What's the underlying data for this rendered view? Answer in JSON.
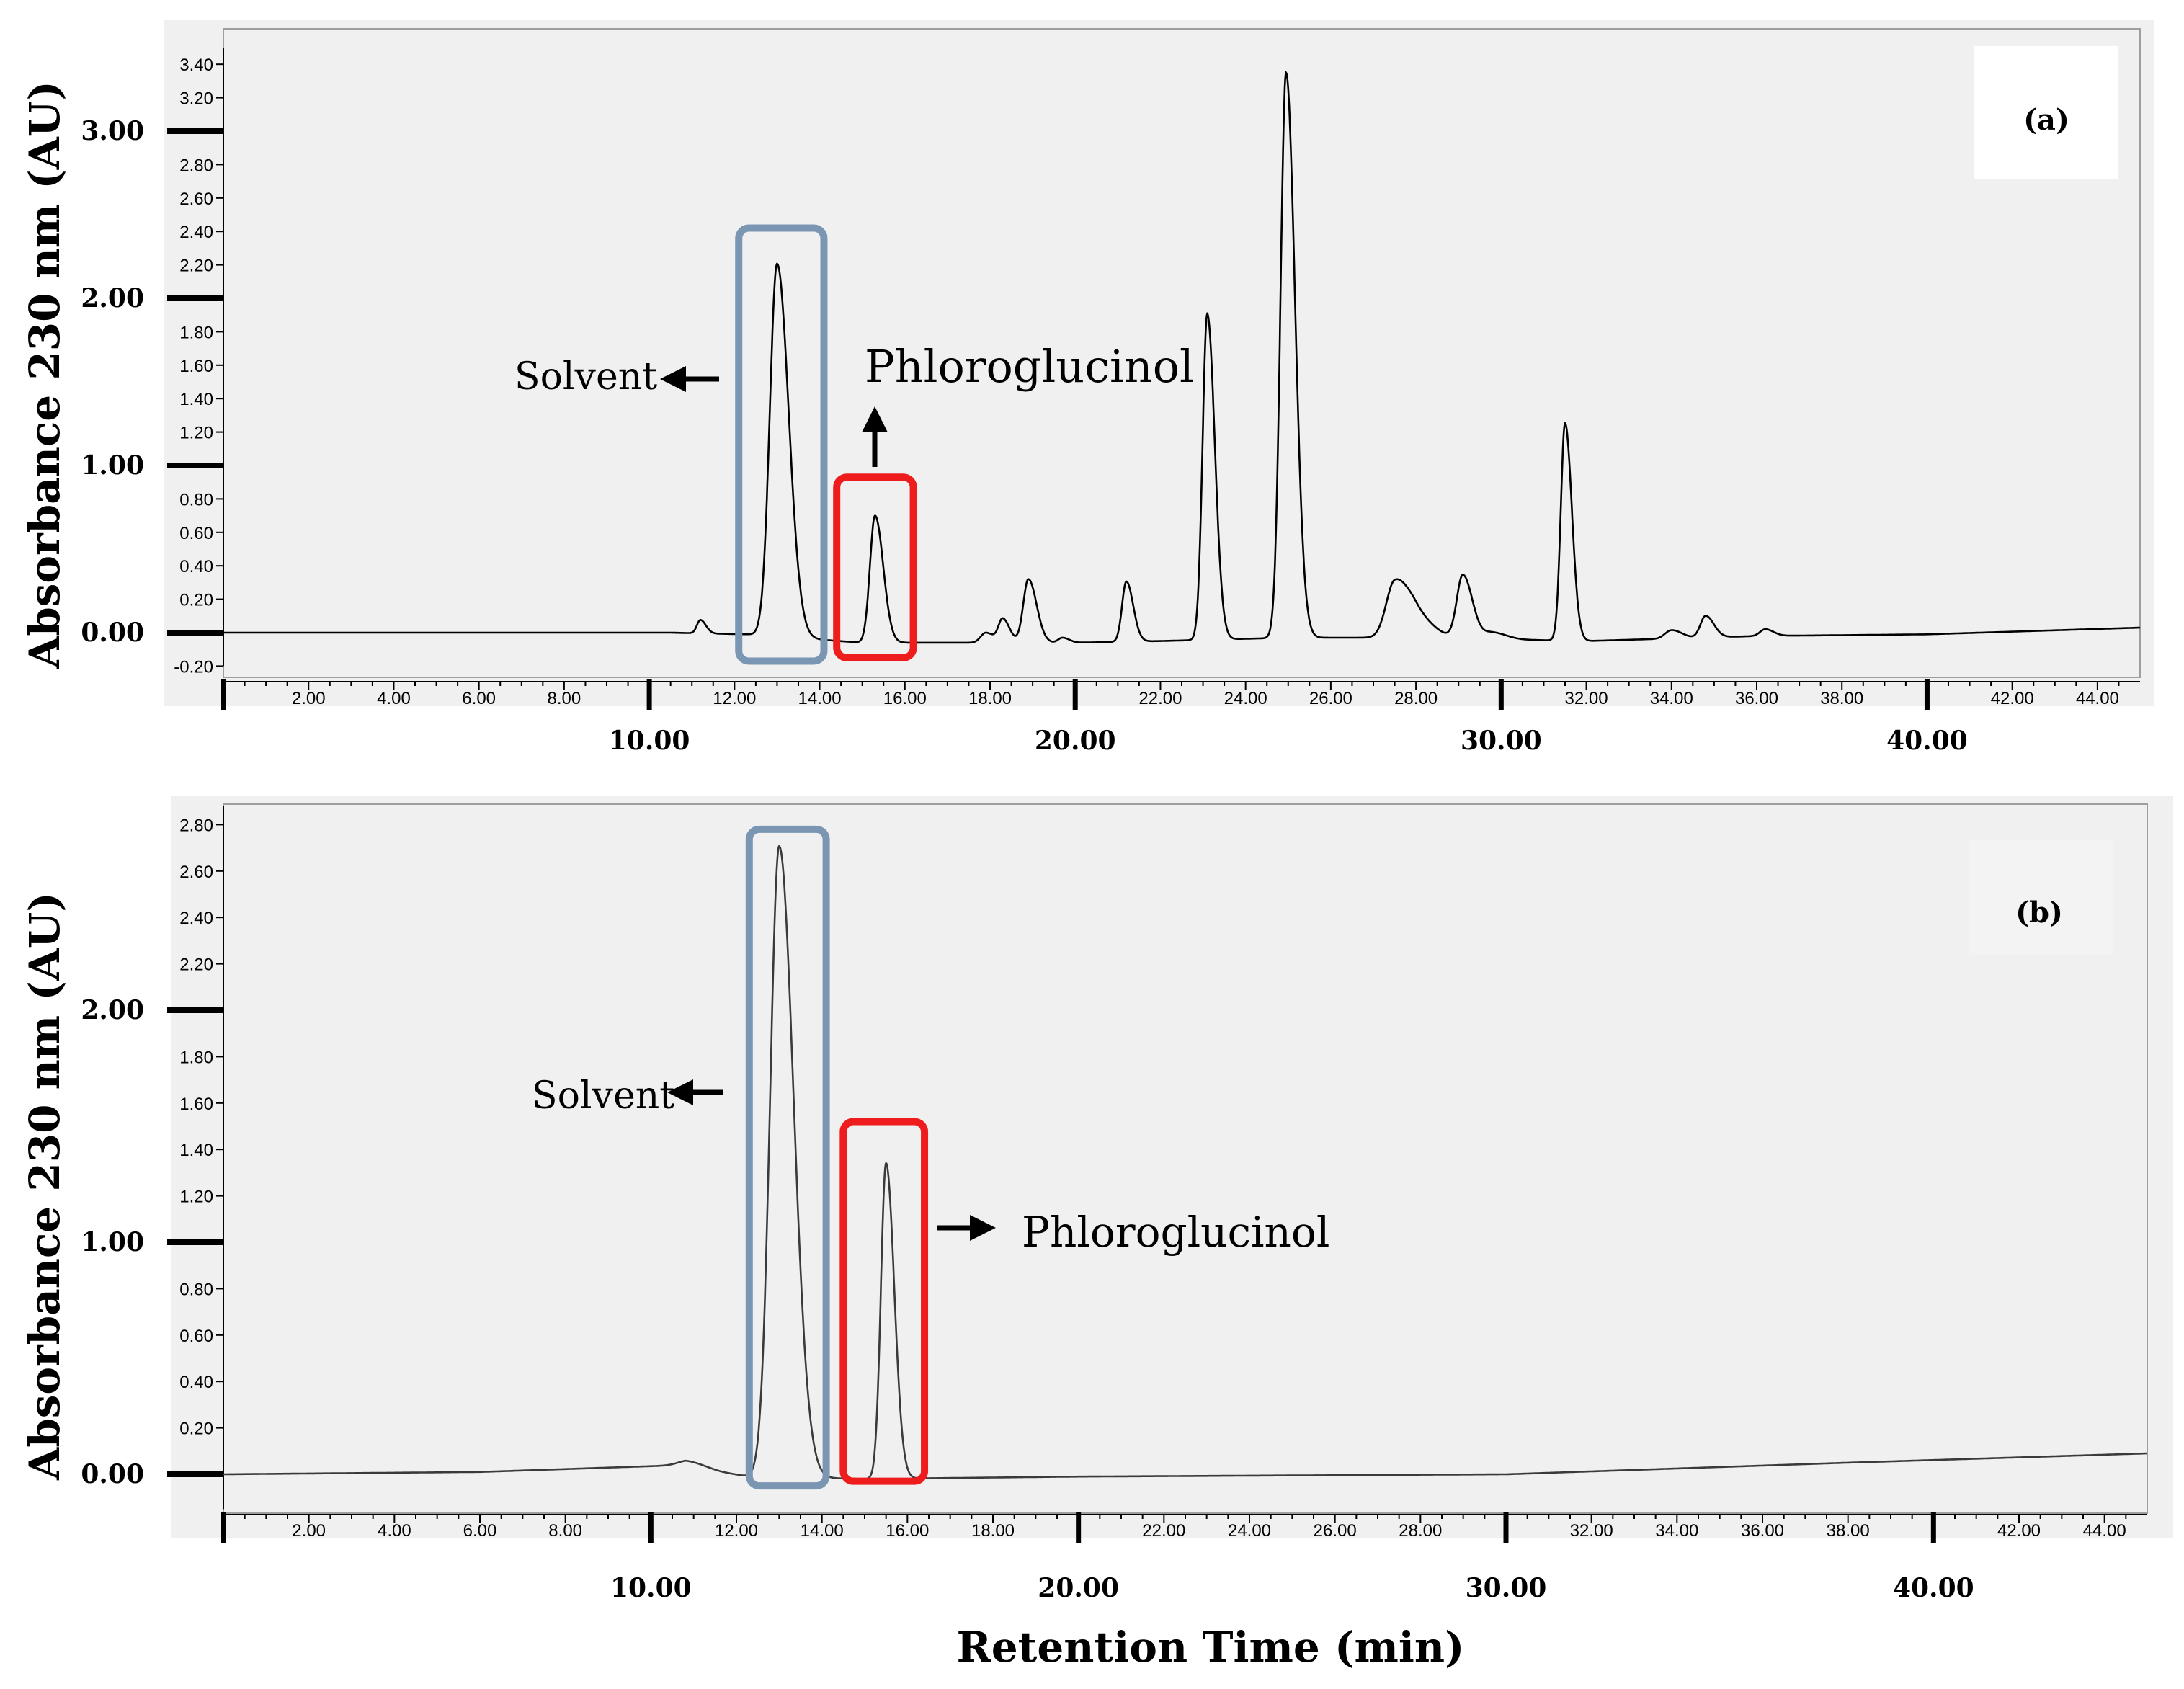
{
  "figure": {
    "xlabel": "Retention Time (min)",
    "ylabel": "Absorbance 230 nm (AU)"
  },
  "chart_data": [
    {
      "type": "line",
      "panel_label": "(a)",
      "xlim": [
        0,
        45
      ],
      "ylim": [
        -0.2,
        3.5
      ],
      "grid": false,
      "minor_x_ticks": [
        "2.00",
        "4.00",
        "6.00",
        "8.00",
        "12.00",
        "14.00",
        "16.00",
        "18.00",
        "22.00",
        "24.00",
        "26.00",
        "28.00",
        "32.00",
        "34.00",
        "36.00",
        "38.00",
        "42.00",
        "44.00"
      ],
      "major_x_ticks": [
        "10.00",
        "20.00",
        "30.00",
        "40.00"
      ],
      "minor_y_ticks": [
        "3.40",
        "3.20",
        "2.80",
        "2.60",
        "2.40",
        "2.20",
        "1.80",
        "1.60",
        "1.40",
        "1.20",
        "0.80",
        "0.60",
        "0.40",
        "0.20",
        "-0.20"
      ],
      "major_y_ticks": [
        "3.00",
        "2.00",
        "1.00",
        "0.00"
      ],
      "baseline": [
        [
          0,
          0.0
        ],
        [
          10.5,
          0.0
        ],
        [
          12.3,
          -0.01
        ],
        [
          15,
          -0.06
        ],
        [
          17,
          -0.06
        ],
        [
          20,
          -0.06
        ],
        [
          22,
          -0.05
        ],
        [
          25,
          -0.03
        ],
        [
          28,
          -0.03
        ],
        [
          32,
          -0.05
        ],
        [
          36,
          -0.02
        ],
        [
          40,
          -0.01
        ],
        [
          45,
          0.03
        ]
      ],
      "peaks": [
        {
          "rt": 11.2,
          "height": 0.08,
          "width": 0.08
        },
        {
          "rt": 13.0,
          "height": 2.23,
          "width": 0.17
        },
        {
          "rt": 15.3,
          "height": 0.76,
          "width": 0.12
        },
        {
          "rt": 17.9,
          "height": 0.06,
          "width": 0.12
        },
        {
          "rt": 18.3,
          "height": 0.14,
          "width": 0.1
        },
        {
          "rt": 18.9,
          "height": 0.38,
          "width": 0.12
        },
        {
          "rt": 19.7,
          "height": 0.03,
          "width": 0.1
        },
        {
          "rt": 21.2,
          "height": 0.36,
          "width": 0.1
        },
        {
          "rt": 23.1,
          "height": 1.95,
          "width": 0.11
        },
        {
          "rt": 24.95,
          "height": 3.38,
          "width": 0.13
        },
        {
          "rt": 27.5,
          "height": 0.33,
          "width": 0.2
        },
        {
          "rt": 28.0,
          "height": 0.12,
          "width": 0.25
        },
        {
          "rt": 29.1,
          "height": 0.38,
          "width": 0.14
        },
        {
          "rt": 29.8,
          "height": 0.04,
          "width": 0.2
        },
        {
          "rt": 31.5,
          "height": 1.3,
          "width": 0.1
        },
        {
          "rt": 34.0,
          "height": 0.05,
          "width": 0.15
        },
        {
          "rt": 34.8,
          "height": 0.13,
          "width": 0.12
        },
        {
          "rt": 36.2,
          "height": 0.04,
          "width": 0.12
        }
      ],
      "boxes": [
        {
          "name": "solvent-box",
          "x0": 12.1,
          "x1": 14.1,
          "y0": -0.17,
          "y1": 2.42,
          "color": "#7b96b2"
        },
        {
          "name": "phloroglucinol-box",
          "x0": 14.4,
          "x1": 16.2,
          "y0": -0.15,
          "y1": 0.93,
          "color": "#ee1c1c"
        }
      ],
      "annotations": {
        "solvent": "Solvent",
        "phloroglucinol": "Phloroglucinol"
      }
    },
    {
      "type": "line",
      "panel_label": "(b)",
      "xlim": [
        0,
        45
      ],
      "ylim": [
        -0.15,
        2.88
      ],
      "grid": false,
      "minor_x_ticks": [
        "2.00",
        "4.00",
        "6.00",
        "8.00",
        "12.00",
        "14.00",
        "16.00",
        "18.00",
        "22.00",
        "24.00",
        "26.00",
        "28.00",
        "32.00",
        "34.00",
        "36.00",
        "38.00",
        "42.00",
        "44.00"
      ],
      "major_x_ticks": [
        "10.00",
        "20.00",
        "30.00",
        "40.00"
      ],
      "minor_y_ticks": [
        "2.80",
        "2.60",
        "2.40",
        "2.20",
        "1.80",
        "1.60",
        "1.40",
        "1.20",
        "0.80",
        "0.60",
        "0.40",
        "0.20"
      ],
      "major_y_ticks": [
        "2.00",
        "1.00",
        "0.00"
      ],
      "baseline": [
        [
          0,
          0.0
        ],
        [
          6,
          0.01
        ],
        [
          10.8,
          0.04
        ],
        [
          11.6,
          0.01
        ],
        [
          12.3,
          -0.01
        ],
        [
          15,
          -0.02
        ],
        [
          20,
          -0.01
        ],
        [
          30,
          0.0
        ],
        [
          38,
          0.05
        ],
        [
          45,
          0.09
        ]
      ],
      "peaks": [
        {
          "rt": 10.9,
          "height": 0.02,
          "width": 0.25
        },
        {
          "rt": 13.0,
          "height": 2.72,
          "width": 0.21
        },
        {
          "rt": 15.5,
          "height": 1.36,
          "width": 0.12
        }
      ],
      "boxes": [
        {
          "name": "solvent-box",
          "x0": 12.3,
          "x1": 14.1,
          "y0": -0.05,
          "y1": 2.78,
          "color": "#7b96b2"
        },
        {
          "name": "phloroglucinol-box",
          "x0": 14.5,
          "x1": 16.4,
          "y0": -0.03,
          "y1": 1.52,
          "color": "#ee1c1c"
        }
      ],
      "annotations": {
        "solvent": "Solvent",
        "phloroglucinol": "Phloroglucinol"
      }
    }
  ]
}
